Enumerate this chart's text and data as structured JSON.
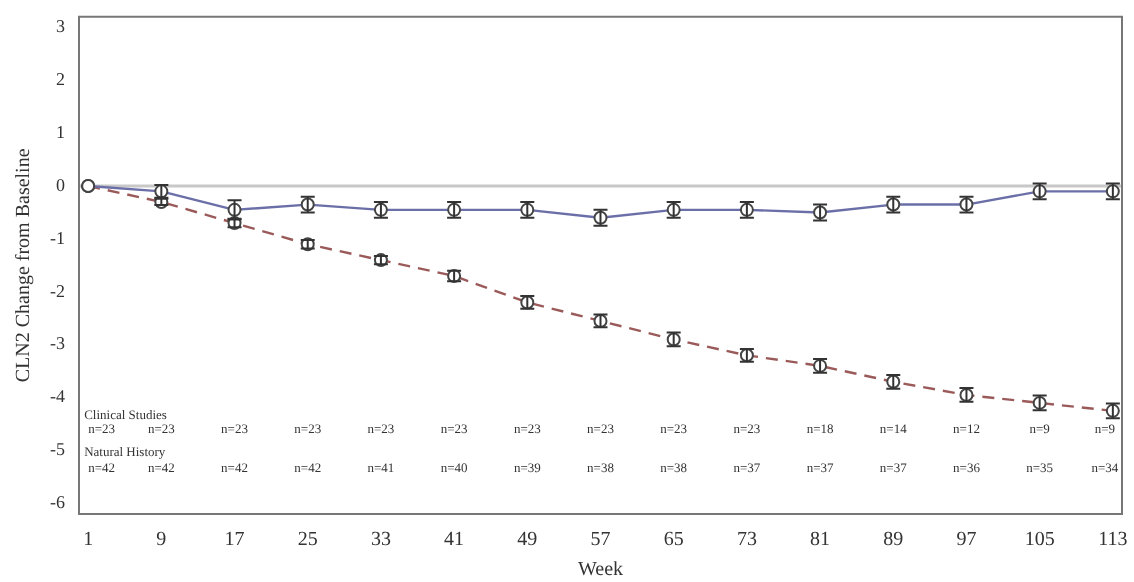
{
  "chart_data": {
    "type": "line",
    "xlabel": "Week",
    "ylabel": "CLN2 Change from Baseline",
    "x": [
      1,
      9,
      17,
      25,
      33,
      41,
      49,
      57,
      65,
      73,
      81,
      89,
      97,
      105,
      113
    ],
    "xlim": [
      0,
      114
    ],
    "xticks": [
      1,
      9,
      17,
      25,
      33,
      41,
      49,
      57,
      65,
      73,
      81,
      89,
      97,
      105,
      113
    ],
    "ylim": [
      -6.2,
      3.2
    ],
    "yticks": [
      -6,
      -5,
      -4,
      -3,
      -2,
      -1,
      0,
      1,
      2,
      3
    ],
    "grid": false,
    "legend": false,
    "marker": "circle",
    "series": [
      {
        "color": "#6b6fa8",
        "line_style": "solid",
        "values": [
          0,
          -0.1,
          -0.45,
          -0.35,
          -0.45,
          -0.45,
          -0.45,
          -0.6,
          -0.45,
          -0.45,
          -0.5,
          -0.35,
          -0.35,
          -0.1,
          -0.1
        ],
        "errors": [
          null,
          0.12,
          0.18,
          0.15,
          0.15,
          0.15,
          0.15,
          0.15,
          0.15,
          0.15,
          0.15,
          0.15,
          0.15,
          0.15,
          0.15
        ]
      },
      {
        "color": "#9b5a5a",
        "line_style": "dashed",
        "values": [
          0,
          -0.3,
          -0.7,
          -1.1,
          -1.4,
          -1.7,
          -2.2,
          -2.55,
          -2.9,
          -3.2,
          -3.4,
          -3.7,
          -3.95,
          -4.1,
          -4.25
        ],
        "errors": [
          null,
          0.06,
          0.08,
          0.08,
          0.08,
          0.1,
          0.12,
          0.12,
          0.13,
          0.12,
          0.13,
          0.13,
          0.13,
          0.14,
          0.14
        ]
      }
    ],
    "ref_lines": [
      {
        "axis": "y",
        "value": 0,
        "color": "#c8c8c8"
      }
    ],
    "annotations": [
      "Clinical Studies",
      "n=23",
      "n=23",
      "n=23",
      "n=23",
      "n=23",
      "n=23",
      "n=23",
      "n=23",
      "n=23",
      "n=23",
      "n=18",
      "n=14",
      "n=12",
      "n=9",
      "n=9",
      "Natural History",
      "n=42",
      "n=42",
      "n=42",
      "n=42",
      "n=41",
      "n=40",
      "n=39",
      "n=38",
      "n=38",
      "n=37",
      "n=37",
      "n=37",
      "n=36",
      "n=35",
      "n=34"
    ]
  }
}
